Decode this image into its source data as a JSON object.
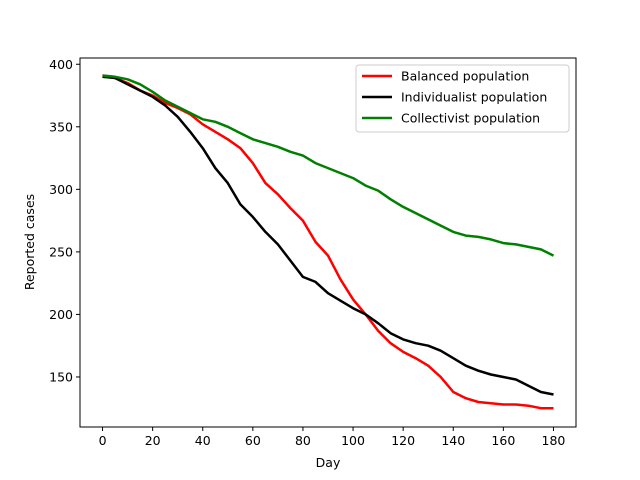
{
  "chart_data": {
    "type": "line",
    "title": "",
    "xlabel": "Day",
    "ylabel": "Reported cases",
    "xlim": [
      -9,
      189
    ],
    "ylim": [
      110,
      405
    ],
    "xticks": [
      0,
      20,
      40,
      60,
      80,
      100,
      120,
      140,
      160,
      180
    ],
    "yticks": [
      150,
      200,
      250,
      300,
      350,
      400
    ],
    "grid": false,
    "legend_position": "top-right",
    "series": [
      {
        "name": "Balanced population",
        "color": "#ff0000",
        "x": [
          0,
          5,
          10,
          15,
          20,
          25,
          30,
          35,
          40,
          45,
          50,
          55,
          60,
          65,
          70,
          75,
          80,
          85,
          90,
          95,
          100,
          105,
          110,
          115,
          120,
          125,
          130,
          135,
          140,
          145,
          150,
          155,
          160,
          165,
          170,
          175,
          180
        ],
        "y": [
          391,
          389,
          385,
          379,
          375,
          369,
          365,
          360,
          352,
          346,
          340,
          333,
          321,
          305,
          296,
          285,
          275,
          258,
          247,
          228,
          212,
          200,
          187,
          177,
          170,
          165,
          159,
          150,
          138,
          133,
          130,
          129,
          128,
          128,
          127,
          125,
          125
        ]
      },
      {
        "name": "Individualist population",
        "color": "#000000",
        "x": [
          0,
          5,
          10,
          15,
          20,
          25,
          30,
          35,
          40,
          45,
          50,
          55,
          60,
          65,
          70,
          75,
          80,
          85,
          90,
          95,
          100,
          105,
          110,
          115,
          120,
          125,
          130,
          135,
          140,
          145,
          150,
          155,
          160,
          165,
          170,
          175,
          180
        ],
        "y": [
          390,
          389,
          384,
          379,
          374,
          367,
          358,
          346,
          333,
          317,
          305,
          288,
          278,
          266,
          256,
          243,
          230,
          226,
          217,
          211,
          205,
          200,
          193,
          185,
          180,
          177,
          175,
          171,
          165,
          159,
          155,
          152,
          150,
          148,
          143,
          138,
          136
        ]
      },
      {
        "name": "Collectivist population",
        "color": "#008000",
        "x": [
          0,
          5,
          10,
          15,
          20,
          25,
          30,
          35,
          40,
          45,
          50,
          55,
          60,
          65,
          70,
          75,
          80,
          85,
          90,
          95,
          100,
          105,
          110,
          115,
          120,
          125,
          130,
          135,
          140,
          145,
          150,
          155,
          160,
          165,
          170,
          175,
          180
        ],
        "y": [
          391,
          390,
          388,
          384,
          378,
          371,
          366,
          361,
          356,
          354,
          350,
          345,
          340,
          337,
          334,
          330,
          327,
          321,
          317,
          313,
          309,
          303,
          299,
          292,
          286,
          281,
          276,
          271,
          266,
          263,
          262,
          260,
          257,
          256,
          254,
          252,
          247
        ]
      }
    ]
  }
}
